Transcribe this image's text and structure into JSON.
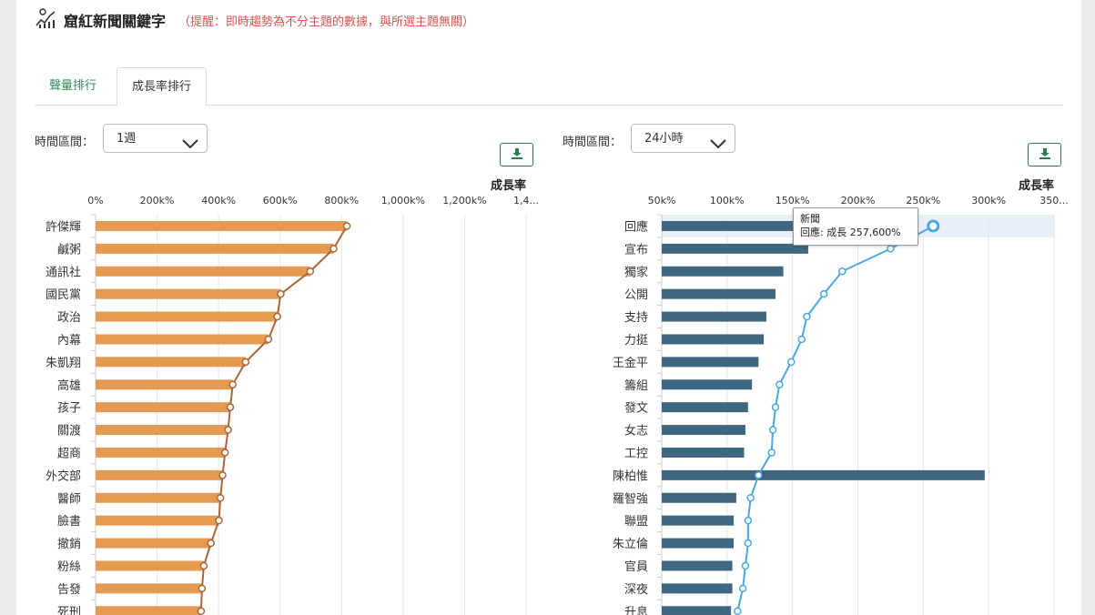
{
  "header": {
    "title": "窟紅新聞關鍵字",
    "warning": "（提醒：即時趨勢為不分主題的數據，與所選主題無關）",
    "icon": "trend-chart-icon"
  },
  "tabs": [
    {
      "label": "聲量排行"
    },
    {
      "label": "成長率排行"
    }
  ],
  "left_filter": {
    "label": "時間區間：",
    "value": "1週"
  },
  "right_filter": {
    "label": "時間區間：",
    "value": "24小時"
  },
  "download_icon": "download-icon",
  "tooltip": {
    "title": "新聞",
    "line": "回應: 成長 257,600%"
  },
  "colors": {
    "left_bar": "#e59a52",
    "left_line": "#a9663a",
    "right_bar": "#3f6782",
    "right_line": "#4aa8df",
    "accent": "#2e8b57",
    "warning": "#d9534f"
  },
  "chart_data": [
    {
      "type": "bar",
      "axis_title": "成長率",
      "x_ticks": [
        "0%",
        "200k%",
        "400k%",
        "600k%",
        "800k%",
        "1,000k%",
        "1,200k%",
        "1,4..."
      ],
      "xlim": [
        0,
        1400000
      ],
      "categories": [
        "許傑輝",
        "鹹粥",
        "通訊社",
        "國民黨",
        "政治",
        "內幕",
        "朱凱翔",
        "高雄",
        "孩子",
        "關渡",
        "超商",
        "外交部",
        "醫師",
        "臉書",
        "撤銷",
        "粉絲",
        "告發",
        "死刑"
      ],
      "values": [
        817000,
        774000,
        698000,
        602000,
        591000,
        562000,
        488000,
        446000,
        438000,
        431000,
        421000,
        413000,
        406000,
        401000,
        375000,
        352000,
        346000,
        343000
      ],
      "line_values": [
        817000,
        774000,
        698000,
        602000,
        591000,
        562000,
        488000,
        446000,
        438000,
        431000,
        421000,
        413000,
        406000,
        401000,
        375000,
        352000,
        346000,
        343000
      ]
    },
    {
      "type": "bar",
      "axis_title": "成長率",
      "x_ticks": [
        "50k%",
        "100k%",
        "150k%",
        "200k%",
        "250k%",
        "300k%",
        "350..."
      ],
      "xlim": [
        50000,
        350000
      ],
      "categories": [
        "回應",
        "宣布",
        "獨家",
        "公開",
        "支持",
        "力挺",
        "王金平",
        "籌組",
        "發文",
        "女志",
        "工控",
        "陳柏惟",
        "羅智強",
        "聯盟",
        "朱立倫",
        "官員",
        "深夜",
        "升息"
      ],
      "values": [
        151000,
        162000,
        143000,
        137000,
        130000,
        128000,
        124000,
        119000,
        116000,
        114000,
        113000,
        297000,
        107000,
        105000,
        105000,
        104000,
        104000,
        103000
      ],
      "line_values": [
        257600,
        225000,
        188000,
        174000,
        161000,
        157000,
        149000,
        140000,
        137000,
        135000,
        134000,
        124000,
        118000,
        116000,
        116000,
        114000,
        112000,
        108000
      ]
    }
  ]
}
